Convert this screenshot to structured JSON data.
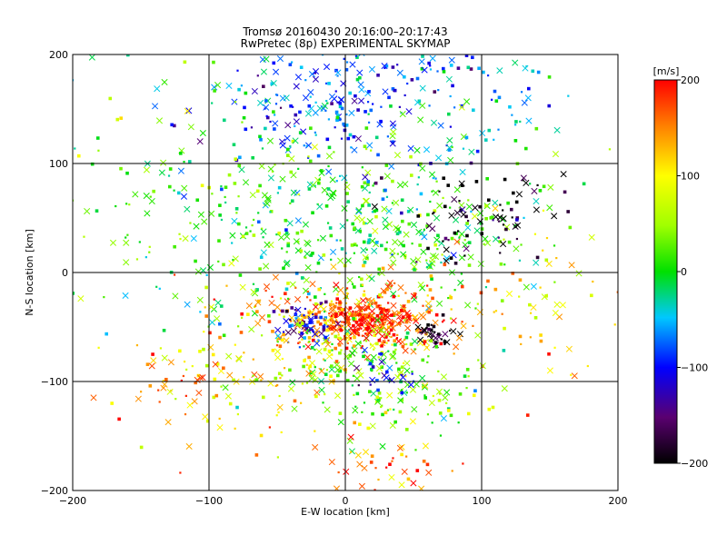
{
  "chart_data": {
    "type": "scatter",
    "title": "Tromsø 20160430 20:16:00–20:17:43",
    "subtitle": "RwPretec (8p) EXPERIMENTAL SKYMAP",
    "xlabel": "E-W location [km]",
    "ylabel": "N-S location [km]",
    "xlim": [
      -200,
      200
    ],
    "ylim": [
      -200,
      200
    ],
    "xticks": [
      "−200",
      "−100",
      "0",
      "100",
      "200"
    ],
    "yticks": [
      "−200",
      "−100",
      "0",
      "100",
      "200"
    ],
    "grid": true,
    "colorbar": {
      "label": "[m/s]",
      "range": [
        -200,
        200
      ],
      "ticks": [
        "200",
        "100",
        "0",
        "−100",
        "−200"
      ],
      "colormap": "rainbow-black-purple-blue-cyan-green-yellow-red"
    },
    "clusters": [
      {
        "x": 5,
        "y": 160,
        "spread": [
          60,
          30
        ],
        "value": -80,
        "count": 220
      },
      {
        "x": -40,
        "y": 140,
        "spread": [
          30,
          20
        ],
        "value": -70,
        "count": 40
      },
      {
        "x": 0,
        "y": 40,
        "spread": [
          80,
          45
        ],
        "value": 10,
        "count": 550
      },
      {
        "x": 100,
        "y": 50,
        "spread": [
          30,
          20
        ],
        "value": -195,
        "count": 80
      },
      {
        "x": 10,
        "y": -40,
        "spread": [
          40,
          18
        ],
        "value": 150,
        "count": 260
      },
      {
        "x": 15,
        "y": -45,
        "spread": [
          18,
          10
        ],
        "value": 195,
        "count": 160
      },
      {
        "x": -30,
        "y": -45,
        "spread": [
          10,
          8
        ],
        "value": -110,
        "count": 60
      },
      {
        "x": 65,
        "y": -55,
        "spread": [
          8,
          8
        ],
        "value": -195,
        "count": 30
      },
      {
        "x": 30,
        "y": -100,
        "spread": [
          35,
          25
        ],
        "value": 30,
        "count": 180
      },
      {
        "x": 30,
        "y": -95,
        "spread": [
          10,
          8
        ],
        "value": -110,
        "count": 25
      },
      {
        "x": -60,
        "y": -80,
        "spread": [
          40,
          30
        ],
        "value": 90,
        "count": 140
      },
      {
        "x": -130,
        "y": -110,
        "spread": [
          30,
          30
        ],
        "value": 150,
        "count": 40
      },
      {
        "x": 30,
        "y": -180,
        "spread": [
          25,
          15
        ],
        "value": 150,
        "count": 40
      },
      {
        "x": 130,
        "y": -40,
        "spread": [
          40,
          40
        ],
        "value": 120,
        "count": 60
      },
      {
        "x": -130,
        "y": 120,
        "spread": [
          40,
          50
        ],
        "value": 20,
        "count": 50
      },
      {
        "x": 120,
        "y": 150,
        "spread": [
          30,
          30
        ],
        "value": -40,
        "count": 35
      }
    ]
  }
}
